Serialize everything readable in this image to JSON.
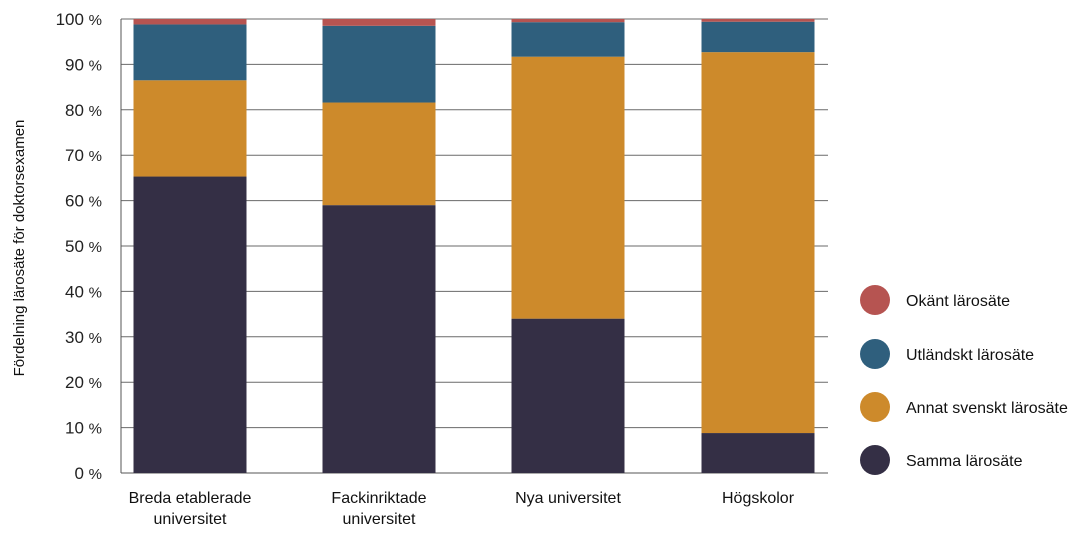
{
  "chart_data": {
    "type": "bar",
    "stacked": true,
    "title": "",
    "xlabel": "",
    "ylabel": "Fördelning lärosäte för doktorsexamen",
    "ylim": [
      0,
      100
    ],
    "y_ticks": [
      "0 %",
      "10 %",
      "20 %",
      "30 %",
      "40 %",
      "50 %",
      "60 %",
      "70 %",
      "80 %",
      "90 %",
      "100 %"
    ],
    "grid": true,
    "legend_position": "right",
    "categories": [
      [
        "Breda etablerade",
        "universitet"
      ],
      [
        "Fackinriktade",
        "universitet"
      ],
      [
        "Nya universitet"
      ],
      [
        "Högskolor"
      ]
    ],
    "series": [
      {
        "name": "Samma lärosäte",
        "color": "#342f45",
        "values": [
          65.3,
          59.0,
          34.0,
          8.8
        ]
      },
      {
        "name": "Annat svenskt lärosäte",
        "color": "#cd8a2b",
        "values": [
          21.2,
          22.6,
          57.7,
          83.9
        ]
      },
      {
        "name": "Utländskt lärosäte",
        "color": "#2f5f7d",
        "values": [
          12.3,
          16.9,
          7.6,
          6.7
        ]
      },
      {
        "name": "Okänt lärosäte",
        "color": "#b65451",
        "values": [
          1.2,
          1.5,
          0.7,
          0.6
        ]
      }
    ],
    "legend_order": [
      "Okänt lärosäte",
      "Utländskt lärosäte",
      "Annat svenskt lärosäte",
      "Samma lärosäte"
    ]
  }
}
